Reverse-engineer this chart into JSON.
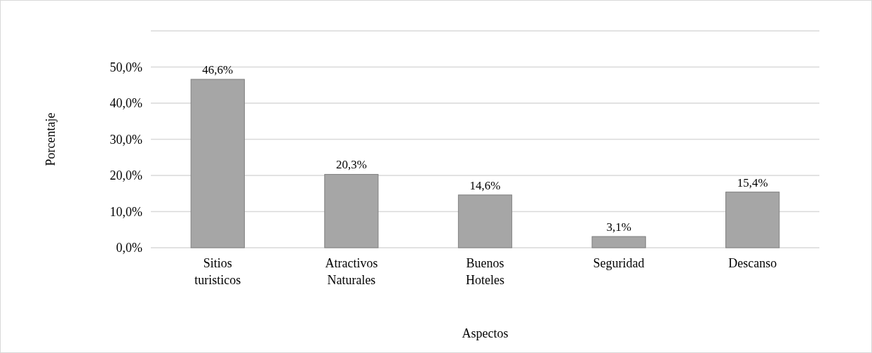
{
  "chart_data": {
    "type": "bar",
    "xlabel": "Aspectos",
    "ylabel": "Porcentaje",
    "categories": [
      "Sitios turisticos",
      "Atractivos Naturales",
      "Buenos Hoteles",
      "Seguridad",
      "Descanso"
    ],
    "values": [
      46.6,
      20.3,
      14.6,
      3.1,
      15.4
    ],
    "value_labels": [
      "46,6%",
      "20,3%",
      "14,6%",
      "3,1%",
      "15,4%"
    ],
    "color": "#a6a6a6",
    "ylim": [
      0,
      60
    ],
    "yticks": [
      {
        "value": 0,
        "label": "0,0%"
      },
      {
        "value": 10,
        "label": "10,0%"
      },
      {
        "value": 20,
        "label": "20,0%"
      },
      {
        "value": 30,
        "label": "30,0%"
      },
      {
        "value": 40,
        "label": "40,0%"
      },
      {
        "value": 50,
        "label": "50,0%"
      },
      {
        "value": 60,
        "label": null
      }
    ],
    "grid": "y"
  }
}
